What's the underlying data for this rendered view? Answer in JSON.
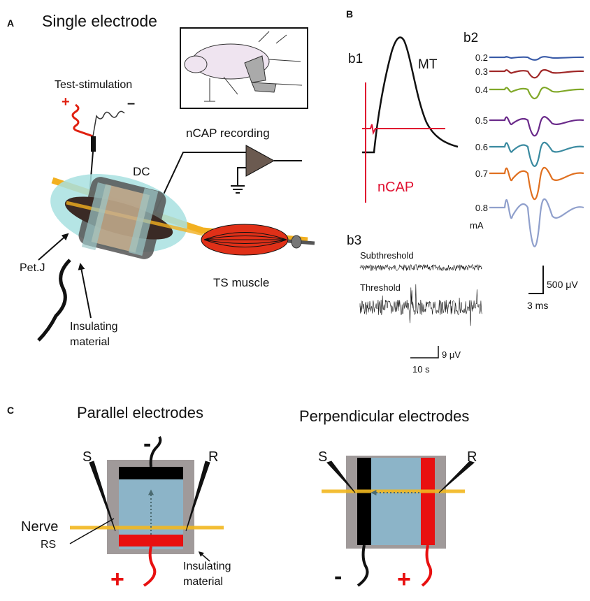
{
  "panel_a": {
    "label": "A",
    "title": "Single electrode",
    "stimulation": "Test-stimulation",
    "plus": "+",
    "minus": "–",
    "recording": "nCAP recording",
    "dc": "DC",
    "petj": "Pet.J",
    "insulating": [
      "Insulating",
      "material"
    ],
    "muscle": "TS muscle"
  },
  "panel_b": {
    "label": "B",
    "b1": {
      "label": "b1",
      "mt": "MT",
      "ncap": "nCAP"
    },
    "b2": {
      "label": "b2",
      "currents": [
        "0.2",
        "0.3",
        "0.4",
        "0.5",
        "0.6",
        "0.7",
        "0.8"
      ],
      "unit": "mA",
      "scale_v": "500 μV",
      "scale_t": "3 ms"
    },
    "b3": {
      "label": "b3",
      "sub": "Subthreshold",
      "thr": "Threshold",
      "scale_v": "9 μV",
      "scale_t": "10 s"
    }
  },
  "panel_c": {
    "label": "C",
    "parallel": {
      "title": "Parallel electrodes",
      "s": "S",
      "r": "R",
      "nerve": "Nerve",
      "rs": "RS",
      "minus": "-",
      "plus": "+",
      "insulating": [
        "Insulating",
        "material"
      ]
    },
    "perpendicular": {
      "title": "Perpendicular electrodes",
      "s": "S",
      "r": "R",
      "minus": "-",
      "plus": "+"
    }
  }
}
